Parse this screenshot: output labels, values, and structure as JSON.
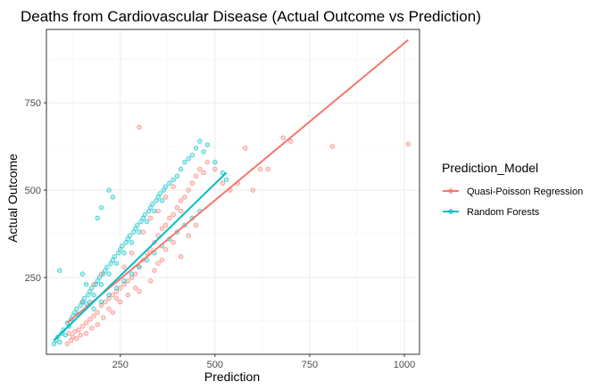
{
  "chart_data": {
    "type": "scatter",
    "title": "Deaths from Cardiovascular Disease (Actual Outcome vs Prediction)",
    "xlabel": "Prediction",
    "ylabel": "Actual Outcome",
    "xlim": [
      55,
      1040
    ],
    "ylim": [
      30,
      960
    ],
    "x_ticks": [
      250,
      500,
      750,
      1000
    ],
    "y_ticks": [
      250,
      500,
      750
    ],
    "grid": true,
    "legend": {
      "title": "Prediction_Model",
      "position": "right"
    },
    "series": [
      {
        "name": "Quasi-Poisson Regression",
        "color": "#F8766D",
        "fit_line": [
          [
            110,
            120
          ],
          [
            1010,
            930
          ]
        ],
        "points": [
          [
            110,
            60
          ],
          [
            120,
            70
          ],
          [
            125,
            80
          ],
          [
            115,
            90
          ],
          [
            130,
            95
          ],
          [
            135,
            75
          ],
          [
            140,
            100
          ],
          [
            150,
            110
          ],
          [
            160,
            120
          ],
          [
            170,
            130
          ],
          [
            180,
            140
          ],
          [
            190,
            150
          ],
          [
            200,
            170
          ],
          [
            210,
            180
          ],
          [
            220,
            190
          ],
          [
            230,
            200
          ],
          [
            240,
            210
          ],
          [
            250,
            220
          ],
          [
            260,
            230
          ],
          [
            270,
            240
          ],
          [
            280,
            250
          ],
          [
            290,
            260
          ],
          [
            300,
            280
          ],
          [
            310,
            300
          ],
          [
            320,
            320
          ],
          [
            330,
            330
          ],
          [
            340,
            350
          ],
          [
            350,
            370
          ],
          [
            360,
            390
          ],
          [
            370,
            400
          ],
          [
            380,
            420
          ],
          [
            390,
            430
          ],
          [
            400,
            450
          ],
          [
            410,
            470
          ],
          [
            420,
            480
          ],
          [
            430,
            500
          ],
          [
            440,
            520
          ],
          [
            450,
            540
          ],
          [
            460,
            560
          ],
          [
            470,
            550
          ],
          [
            480,
            580
          ],
          [
            500,
            560
          ],
          [
            520,
            520
          ],
          [
            540,
            500
          ],
          [
            560,
            520
          ],
          [
            580,
            620
          ],
          [
            600,
            500
          ],
          [
            620,
            560
          ],
          [
            640,
            560
          ],
          [
            680,
            650
          ],
          [
            700,
            640
          ],
          [
            810,
            625
          ],
          [
            1010,
            632
          ],
          [
            150,
            180
          ],
          [
            180,
            230
          ],
          [
            200,
            260
          ],
          [
            220,
            160
          ],
          [
            240,
            190
          ],
          [
            260,
            280
          ],
          [
            280,
            320
          ],
          [
            300,
            210
          ],
          [
            330,
            240
          ],
          [
            350,
            290
          ],
          [
            370,
            330
          ],
          [
            390,
            350
          ],
          [
            410,
            310
          ],
          [
            430,
            370
          ],
          [
            450,
            400
          ],
          [
            230,
            150
          ],
          [
            250,
            180
          ],
          [
            270,
            200
          ],
          [
            290,
            220
          ],
          [
            160,
            90
          ],
          [
            175,
            105
          ],
          [
            190,
            115
          ],
          [
            205,
            135
          ],
          [
            145,
            85
          ],
          [
            310,
            380
          ],
          [
            330,
            420
          ],
          [
            350,
            440
          ],
          [
            370,
            480
          ],
          [
            390,
            510
          ],
          [
            410,
            440
          ],
          [
            340,
            270
          ],
          [
            360,
            300
          ],
          [
            300,
            680
          ]
        ]
      },
      {
        "name": "Random Forests",
        "color": "#00BFC4",
        "fit_line": [
          [
            75,
            70
          ],
          [
            530,
            550
          ]
        ],
        "points": [
          [
            75,
            60
          ],
          [
            80,
            70
          ],
          [
            85,
            80
          ],
          [
            90,
            65
          ],
          [
            95,
            90
          ],
          [
            100,
            100
          ],
          [
            105,
            85
          ],
          [
            110,
            120
          ],
          [
            115,
            110
          ],
          [
            120,
            130
          ],
          [
            125,
            140
          ],
          [
            130,
            150
          ],
          [
            135,
            160
          ],
          [
            140,
            145
          ],
          [
            145,
            170
          ],
          [
            150,
            180
          ],
          [
            155,
            190
          ],
          [
            160,
            175
          ],
          [
            165,
            200
          ],
          [
            170,
            210
          ],
          [
            175,
            220
          ],
          [
            180,
            200
          ],
          [
            185,
            230
          ],
          [
            190,
            240
          ],
          [
            195,
            250
          ],
          [
            200,
            230
          ],
          [
            205,
            260
          ],
          [
            210,
            270
          ],
          [
            215,
            280
          ],
          [
            220,
            260
          ],
          [
            225,
            290
          ],
          [
            230,
            300
          ],
          [
            235,
            310
          ],
          [
            240,
            290
          ],
          [
            245,
            320
          ],
          [
            250,
            330
          ],
          [
            255,
            340
          ],
          [
            260,
            320
          ],
          [
            265,
            350
          ],
          [
            270,
            360
          ],
          [
            275,
            370
          ],
          [
            280,
            350
          ],
          [
            285,
            380
          ],
          [
            290,
            390
          ],
          [
            295,
            400
          ],
          [
            300,
            380
          ],
          [
            305,
            410
          ],
          [
            310,
            420
          ],
          [
            315,
            430
          ],
          [
            320,
            410
          ],
          [
            325,
            440
          ],
          [
            330,
            450
          ],
          [
            335,
            460
          ],
          [
            340,
            440
          ],
          [
            345,
            470
          ],
          [
            350,
            480
          ],
          [
            355,
            490
          ],
          [
            360,
            470
          ],
          [
            365,
            500
          ],
          [
            370,
            510
          ],
          [
            380,
            520
          ],
          [
            390,
            530
          ],
          [
            400,
            540
          ],
          [
            410,
            560
          ],
          [
            420,
            580
          ],
          [
            430,
            590
          ],
          [
            440,
            600
          ],
          [
            450,
            620
          ],
          [
            460,
            640
          ],
          [
            470,
            610
          ],
          [
            480,
            630
          ],
          [
            500,
            580
          ],
          [
            520,
            550
          ],
          [
            530,
            530
          ],
          [
            150,
            260
          ],
          [
            160,
            230
          ],
          [
            170,
            180
          ],
          [
            180,
            160
          ],
          [
            200,
            180
          ],
          [
            220,
            200
          ],
          [
            240,
            220
          ],
          [
            260,
            240
          ],
          [
            280,
            260
          ],
          [
            300,
            280
          ],
          [
            320,
            300
          ],
          [
            340,
            320
          ],
          [
            360,
            340
          ],
          [
            380,
            360
          ],
          [
            400,
            380
          ],
          [
            420,
            400
          ],
          [
            440,
            420
          ],
          [
            460,
            440
          ],
          [
            90,
            270
          ],
          [
            230,
            480
          ],
          [
            220,
            500
          ],
          [
            200,
            450
          ],
          [
            190,
            420
          ]
        ]
      }
    ]
  }
}
